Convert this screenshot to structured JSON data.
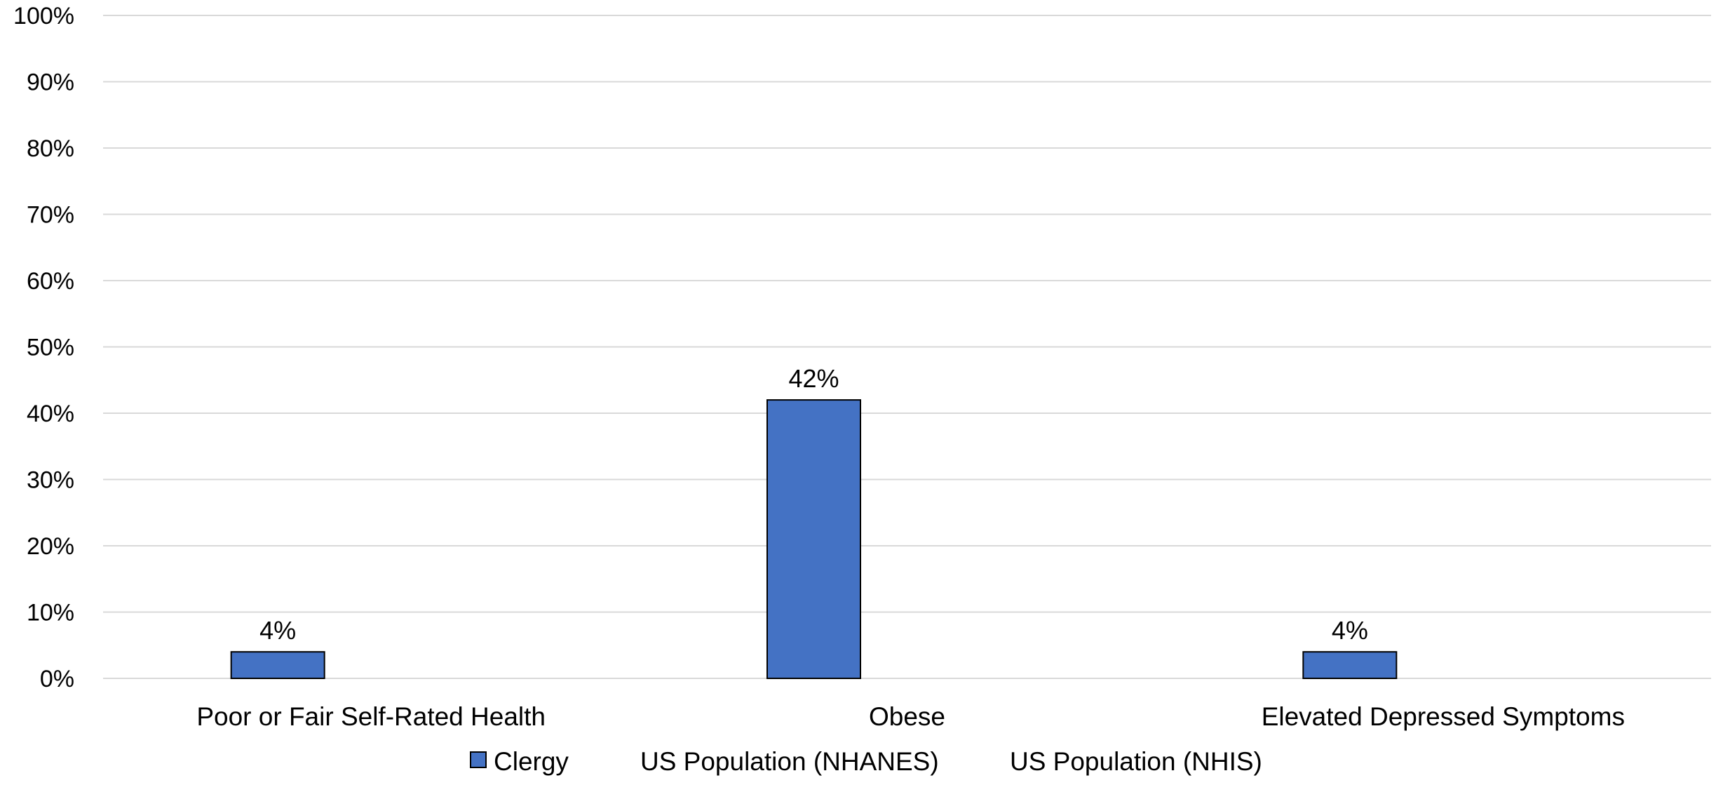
{
  "chart_data": {
    "type": "bar",
    "categories": [
      "Poor or Fair Self-Rated Health",
      "Obese",
      "Elevated Depressed Symptoms"
    ],
    "series": [
      {
        "name": "Clergy",
        "values": [
          4,
          42,
          4
        ],
        "labels": [
          "4%",
          "42%",
          "4%"
        ],
        "color": "#4472c4"
      },
      {
        "name": "US Population (NHANES)",
        "values": [
          null,
          null,
          null
        ],
        "labels": [],
        "color": "#ed7d31"
      },
      {
        "name": "US Population (NHIS)",
        "values": [
          null,
          null,
          null
        ],
        "labels": [],
        "color": "#a5a5a5"
      }
    ],
    "title": "",
    "xlabel": "",
    "ylabel": "",
    "ylim": [
      0,
      100
    ],
    "yticks": [
      0,
      10,
      20,
      30,
      40,
      50,
      60,
      70,
      80,
      90,
      100
    ],
    "ytick_labels": [
      "0%",
      "10%",
      "20%",
      "30%",
      "40%",
      "50%",
      "60%",
      "70%",
      "80%",
      "90%",
      "100%"
    ],
    "grid": true,
    "legend_position": "bottom"
  }
}
